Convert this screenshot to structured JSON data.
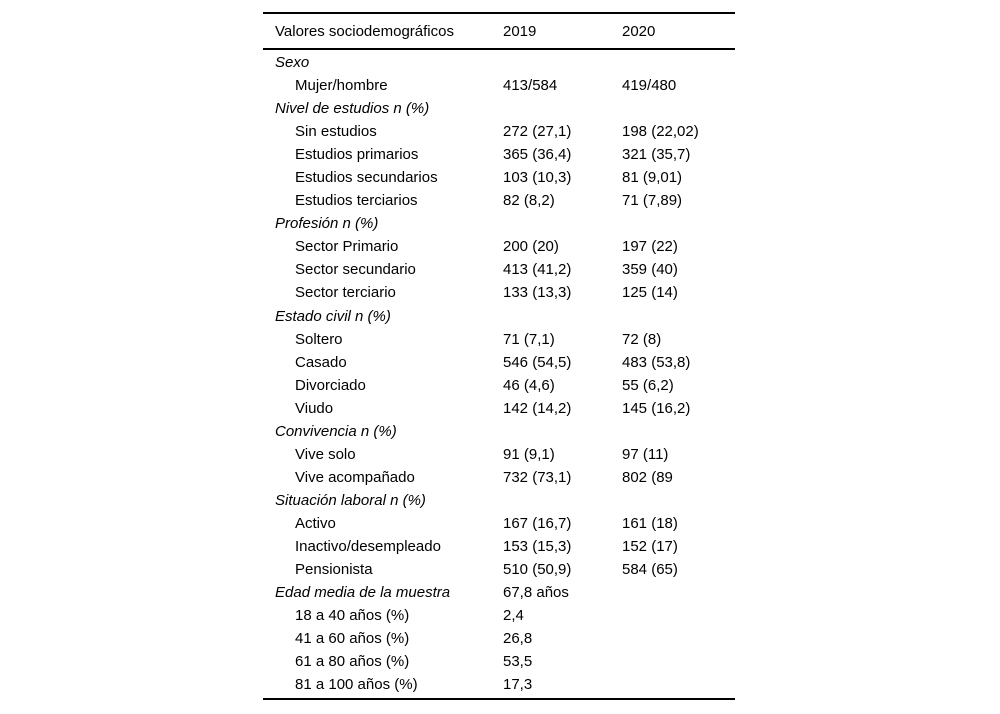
{
  "table": {
    "header": {
      "label": "Valores sociodemográficos",
      "y2019": "2019",
      "y2020": "2020"
    },
    "rows": [
      {
        "type": "section",
        "label": "Sexo",
        "v2019": "",
        "v2020": ""
      },
      {
        "type": "item",
        "label": "Mujer/hombre",
        "v2019": "413/584",
        "v2020": "419/480"
      },
      {
        "type": "section",
        "label": "Nivel de estudios n (%)",
        "v2019": "",
        "v2020": ""
      },
      {
        "type": "item",
        "label": "Sin estudios",
        "v2019": "272 (27,1)",
        "v2020": "198 (22,02)"
      },
      {
        "type": "item",
        "label": "Estudios primarios",
        "v2019": "365 (36,4)",
        "v2020": "321 (35,7)"
      },
      {
        "type": "item",
        "label": "Estudios secundarios",
        "v2019": "103 (10,3)",
        "v2020": "81 (9,01)"
      },
      {
        "type": "item",
        "label": "Estudios terciarios",
        "v2019": "82 (8,2)",
        "v2020": "71 (7,89)"
      },
      {
        "type": "section",
        "label": "Profesión n (%)",
        "v2019": "",
        "v2020": ""
      },
      {
        "type": "item",
        "label": "Sector Primario",
        "v2019": "200 (20)",
        "v2020": "197 (22)"
      },
      {
        "type": "item",
        "label": "Sector secundario",
        "v2019": "413 (41,2)",
        "v2020": "359 (40)"
      },
      {
        "type": "item",
        "label": "Sector terciario",
        "v2019": "133 (13,3)",
        "v2020": "125 (14)"
      },
      {
        "type": "section",
        "label": "Estado civil n (%)",
        "v2019": "",
        "v2020": ""
      },
      {
        "type": "item",
        "label": "Soltero",
        "v2019": "71 (7,1)",
        "v2020": "72 (8)"
      },
      {
        "type": "item",
        "label": "Casado",
        "v2019": "546 (54,5)",
        "v2020": "483 (53,8)"
      },
      {
        "type": "item",
        "label": "Divorciado",
        "v2019": "46 (4,6)",
        "v2020": "55 (6,2)"
      },
      {
        "type": "item",
        "label": "Viudo",
        "v2019": "142 (14,2)",
        "v2020": "145 (16,2)"
      },
      {
        "type": "section",
        "label": "Convivencia n (%)",
        "v2019": "",
        "v2020": ""
      },
      {
        "type": "item",
        "label": "Vive solo",
        "v2019": "91 (9,1)",
        "v2020": "97 (11)"
      },
      {
        "type": "item",
        "label": "Vive acompañado",
        "v2019": "732 (73,1)",
        "v2020": "802 (89"
      },
      {
        "type": "section",
        "label": "Situación laboral n (%)",
        "v2019": "",
        "v2020": ""
      },
      {
        "type": "item",
        "label": "Activo",
        "v2019": "167 (16,7)",
        "v2020": "161 (18)"
      },
      {
        "type": "item",
        "label": "Inactivo/desempleado",
        "v2019": "153 (15,3)",
        "v2020": "152 (17)"
      },
      {
        "type": "item",
        "label": "Pensionista",
        "v2019": "510 (50,9)",
        "v2020": "584 (65)"
      },
      {
        "type": "section",
        "label": "Edad media de la muestra",
        "v2019": "67,8 años",
        "v2020": ""
      },
      {
        "type": "item",
        "label": "18 a 40 años (%)",
        "v2019": "2,4",
        "v2020": ""
      },
      {
        "type": "item",
        "label": "41 a 60 años (%)",
        "v2019": "26,8",
        "v2020": ""
      },
      {
        "type": "item",
        "label": "61 a 80 años (%)",
        "v2019": "53,5",
        "v2020": ""
      },
      {
        "type": "item",
        "label": "81 a 100 años (%)",
        "v2019": "17,3",
        "v2020": ""
      }
    ]
  }
}
